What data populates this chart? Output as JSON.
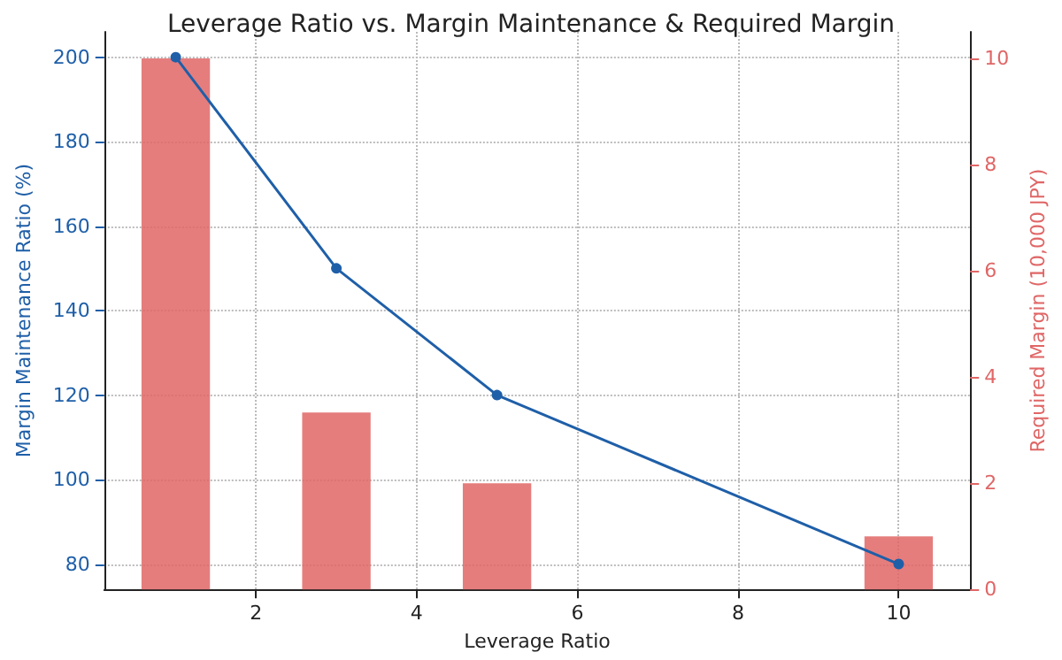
{
  "chart_data": {
    "type": "line",
    "title": "Leverage Ratio vs. Margin Maintenance & Required Margin",
    "xlabel": "Leverage Ratio",
    "ylabel": "Margin Maintenance Ratio (%)",
    "y2label": "Required Margin (10,000 JPY)",
    "x": [
      1,
      3,
      5,
      10
    ],
    "series": [
      {
        "type": "bar",
        "axis": "y2",
        "color": "#e06666",
        "values": [
          10,
          3.33,
          2,
          1
        ]
      },
      {
        "axis": "y",
        "color": "#1f5fa8",
        "values": [
          200,
          150,
          120,
          80
        ]
      }
    ],
    "xlim": [
      0.11,
      10.89
    ],
    "xticks": [
      2,
      4,
      6,
      8,
      10
    ],
    "ylim": [
      74,
      206
    ],
    "yticks": [
      80,
      100,
      120,
      140,
      160,
      180,
      200
    ],
    "y2lim": [
      0,
      10.5
    ],
    "y2ticks": [
      0,
      2,
      4,
      6,
      8,
      10
    ],
    "grid": true,
    "marker": "circle",
    "line_style": "solid"
  }
}
